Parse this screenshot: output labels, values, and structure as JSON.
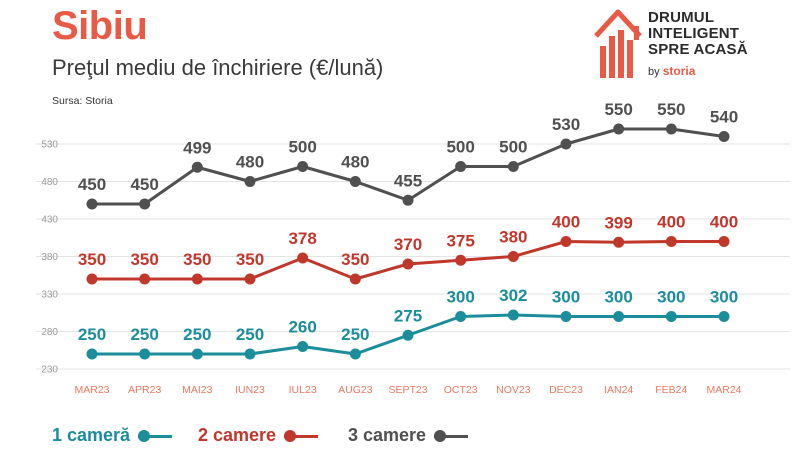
{
  "title": "Sibiu",
  "subtitle": "Preţul mediu de închiriere (€/lună)",
  "source": "Sursa: Storia",
  "logo": {
    "line1": "DRUMUL",
    "line2": "INTELIGENT",
    "line3": "SPRE ACASĂ",
    "by": "by",
    "brand": "storia",
    "icon": "house-bar-chart-icon"
  },
  "colors": {
    "one_room": "#1c8d9b",
    "two_rooms": "#c0382b",
    "three_rooms": "#505050",
    "title": "#e85a45",
    "grid": "#e3e3e3",
    "axis_text": "#e8795f"
  },
  "chart_data": {
    "type": "line",
    "categories": [
      "MAR23",
      "APR23",
      "MAI23",
      "IUN23",
      "IUL23",
      "AUG23",
      "SEPT23",
      "OCT23",
      "NOV23",
      "DEC23",
      "IAN24",
      "FEB24",
      "MAR24"
    ],
    "y_ticks": [
      230,
      280,
      330,
      380,
      430,
      480,
      530
    ],
    "ylim": [
      230,
      550
    ],
    "grid": true,
    "legend_position": "bottom",
    "series": [
      {
        "name": "1 cameră",
        "color": "#1c8d9b",
        "values": [
          250,
          250,
          250,
          250,
          260,
          250,
          275,
          300,
          302,
          300,
          300,
          300,
          300
        ]
      },
      {
        "name": "2 camere",
        "color": "#c0382b",
        "values": [
          350,
          350,
          350,
          350,
          378,
          350,
          370,
          375,
          380,
          400,
          399,
          400,
          400
        ]
      },
      {
        "name": "3 camere",
        "color": "#505050",
        "values": [
          450,
          450,
          499,
          480,
          500,
          480,
          455,
          500,
          500,
          530,
          550,
          550,
          540
        ]
      }
    ]
  }
}
